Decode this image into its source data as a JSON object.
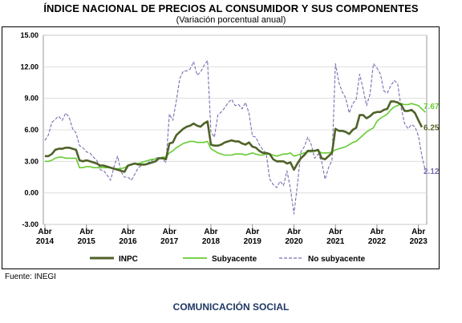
{
  "header": {
    "title": "ÍNDICE NACIONAL DE PRECIOS AL CONSUMIDOR Y SUS COMPONENTES",
    "subtitle": "(Variación porcentual anual)"
  },
  "source": "Fuente: INEGI",
  "footer": "COMUNICACIÓN SOCIAL",
  "chart_data": {
    "type": "line",
    "y_ticks": [
      "15.00",
      "12.00",
      "9.00",
      "6.00",
      "3.00",
      "0.00",
      "-3.00"
    ],
    "ylim": [
      -3,
      15
    ],
    "grid": true,
    "legend_position": "bottom",
    "x_labels": [
      {
        "month": "Abr",
        "year": "2014",
        "pos": 0
      },
      {
        "month": "Abr",
        "year": "2015",
        "pos": 12
      },
      {
        "month": "Abr",
        "year": "2016",
        "pos": 24
      },
      {
        "month": "Abr",
        "year": "2017",
        "pos": 36
      },
      {
        "month": "Abr",
        "year": "2018",
        "pos": 48
      },
      {
        "month": "Abr",
        "year": "2019",
        "pos": 60
      },
      {
        "month": "Abr",
        "year": "2020",
        "pos": 72
      },
      {
        "month": "Abr",
        "year": "2021",
        "pos": 84
      },
      {
        "month": "Abr",
        "year": "2022",
        "pos": 96
      },
      {
        "month": "Abr",
        "year": "2023",
        "pos": 108
      }
    ],
    "series": [
      {
        "name": "INPC",
        "color": "#4f6228",
        "style": "solid",
        "end_label": "6.25",
        "values": [
          3.5,
          3.5,
          3.7,
          4.1,
          4.2,
          4.2,
          4.3,
          4.3,
          4.2,
          4.1,
          3.1,
          3.0,
          3.1,
          3.0,
          2.9,
          2.8,
          2.6,
          2.6,
          2.5,
          2.4,
          2.3,
          2.2,
          2.1,
          2.0,
          2.6,
          2.7,
          2.8,
          2.7,
          2.7,
          2.7,
          2.8,
          2.9,
          3.0,
          3.3,
          3.3,
          3.2,
          4.7,
          4.8,
          5.5,
          5.8,
          6.1,
          6.3,
          6.4,
          6.6,
          6.4,
          6.3,
          6.6,
          6.8,
          4.6,
          4.5,
          4.5,
          4.6,
          4.8,
          4.9,
          5.0,
          4.9,
          4.9,
          4.7,
          4.6,
          4.8,
          4.4,
          4.3,
          4.0,
          3.8,
          3.8,
          3.7,
          3.2,
          3.0,
          3.0,
          3.0,
          2.8,
          2.9,
          2.2,
          2.8,
          3.3,
          3.6,
          4.0,
          4.0,
          4.0,
          4.1,
          3.3,
          3.2,
          3.5,
          3.8,
          6.1,
          5.9,
          5.9,
          5.8,
          5.6,
          6.0,
          6.2,
          7.4,
          7.4,
          7.1,
          7.3,
          7.6,
          7.7,
          7.7,
          7.9,
          8.0,
          8.7,
          8.7,
          8.6,
          8.4,
          7.8,
          7.8,
          7.9,
          7.6,
          6.9,
          6.25
        ]
      },
      {
        "name": "Subyacente",
        "color": "#66cc33",
        "style": "solid",
        "end_label": "7.67",
        "values": [
          3.0,
          3.0,
          3.1,
          3.3,
          3.4,
          3.4,
          3.3,
          3.3,
          3.3,
          3.3,
          2.4,
          2.4,
          2.5,
          2.5,
          2.4,
          2.4,
          2.4,
          2.4,
          2.4,
          2.4,
          2.3,
          2.3,
          2.3,
          2.4,
          2.6,
          2.7,
          2.8,
          2.8,
          2.9,
          3.0,
          3.1,
          3.2,
          3.2,
          3.3,
          3.4,
          3.4,
          3.8,
          4.0,
          4.3,
          4.5,
          4.7,
          4.8,
          4.9,
          4.9,
          4.8,
          4.8,
          4.8,
          4.9,
          4.2,
          4.0,
          3.8,
          3.7,
          3.6,
          3.6,
          3.6,
          3.7,
          3.7,
          3.7,
          3.6,
          3.7,
          3.8,
          3.7,
          3.6,
          3.6,
          3.7,
          3.7,
          3.6,
          3.5,
          3.6,
          3.7,
          3.7,
          3.8,
          3.5,
          3.6,
          3.7,
          3.8,
          3.9,
          3.9,
          4.0,
          4.0,
          3.8,
          3.8,
          3.8,
          3.9,
          4.1,
          4.2,
          4.3,
          4.4,
          4.6,
          4.8,
          4.9,
          5.2,
          5.5,
          5.8,
          6.0,
          6.2,
          6.8,
          7.1,
          7.3,
          7.5,
          7.9,
          8.2,
          8.3,
          8.5,
          8.4,
          8.4,
          8.5,
          8.4,
          8.3,
          8.0,
          7.67
        ]
      },
      {
        "name": "No subyacente",
        "color": "#7b6cb0",
        "style": "dashed",
        "end_label": "2.12",
        "values": [
          5.0,
          5.5,
          6.7,
          7.0,
          7.3,
          6.9,
          7.6,
          7.2,
          6.1,
          5.7,
          4.5,
          4.3,
          3.9,
          3.8,
          3.4,
          3.1,
          2.2,
          2.1,
          1.7,
          1.2,
          2.5,
          3.5,
          2.0,
          1.5,
          1.5,
          1.2,
          1.8,
          2.4,
          2.6,
          2.7,
          2.9,
          3.1,
          3.3,
          3.4,
          3.2,
          2.9,
          7.5,
          6.9,
          8.8,
          10.9,
          11.6,
          11.6,
          11.8,
          12.5,
          11.2,
          11.5,
          12.1,
          12.6,
          5.8,
          5.3,
          7.4,
          7.7,
          8.1,
          8.6,
          8.9,
          8.3,
          8.4,
          8.0,
          8.6,
          7.6,
          5.4,
          5.3,
          4.6,
          4.1,
          3.7,
          1.3,
          0.8,
          0.5,
          1.1,
          0.7,
          2.1,
          0.4,
          -2.0,
          0.8,
          3.9,
          4.4,
          5.3,
          4.6,
          3.3,
          3.7,
          3.0,
          1.3,
          2.4,
          3.1,
          12.3,
          10.5,
          9.6,
          9.0,
          7.6,
          8.5,
          8.9,
          11.3,
          9.9,
          8.3,
          9.4,
          12.3,
          11.9,
          11.3,
          9.7,
          9.5,
          10.2,
          10.7,
          10.4,
          8.1,
          6.6,
          6.1,
          6.5,
          6.3,
          5.4,
          3.5,
          2.12
        ]
      }
    ]
  }
}
